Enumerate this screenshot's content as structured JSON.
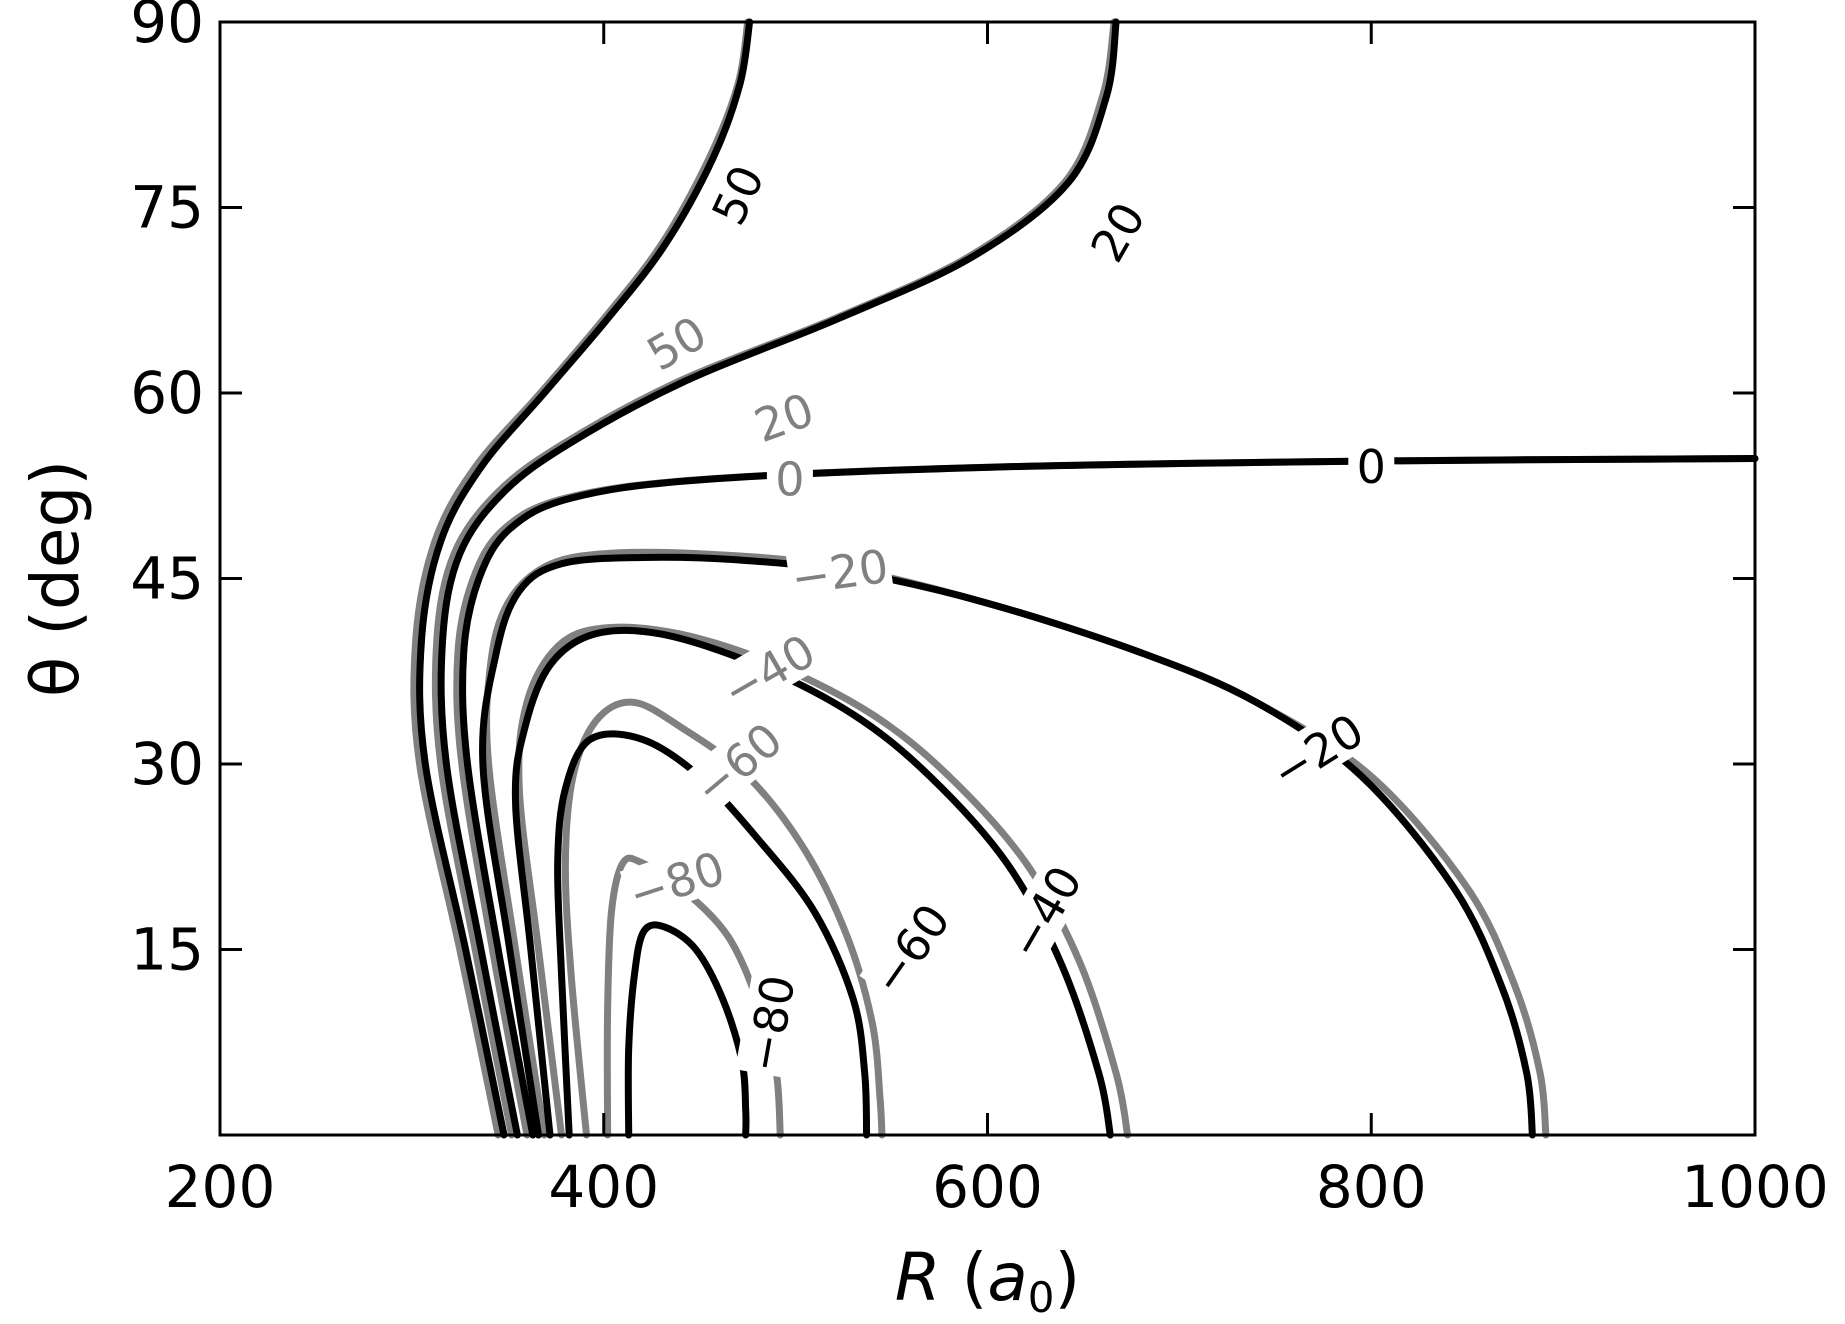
{
  "chart_data": {
    "type": "contour",
    "xlabel": "R",
    "xlabel_unit_base": "a",
    "xlabel_unit_sub": "0",
    "ylabel": "θ (deg)",
    "xlim": [
      200,
      1000
    ],
    "ylim": [
      0,
      90
    ],
    "xticks": [
      200,
      400,
      600,
      800,
      1000
    ],
    "yticks": [
      15,
      30,
      45,
      60,
      75,
      90
    ],
    "colors": {
      "black": "#000000",
      "gray": "#808080"
    },
    "series": [
      {
        "level": 50,
        "color": "#808080",
        "points": [
          [
            345,
            0
          ],
          [
            325,
            15
          ],
          [
            304,
            30
          ],
          [
            302,
            40
          ],
          [
            312,
            48
          ],
          [
            333,
            54
          ],
          [
            367,
            60
          ],
          [
            400,
            66
          ],
          [
            430,
            72
          ],
          [
            455,
            79
          ],
          [
            470,
            85
          ],
          [
            475,
            90
          ]
        ]
      },
      {
        "level": 50,
        "color": "#000000",
        "points": [
          [
            348,
            0
          ],
          [
            328,
            15
          ],
          [
            307,
            30
          ],
          [
            305,
            40
          ],
          [
            315,
            48
          ],
          [
            336,
            54
          ],
          [
            369,
            60
          ],
          [
            402,
            66
          ],
          [
            432,
            72
          ],
          [
            457,
            79
          ],
          [
            471,
            85
          ],
          [
            476,
            90
          ]
        ]
      },
      {
        "level": 20,
        "color": "#808080",
        "points": [
          [
            352,
            0
          ],
          [
            333,
            15
          ],
          [
            315,
            30
          ],
          [
            313,
            40
          ],
          [
            322,
            47
          ],
          [
            345,
            52
          ],
          [
            380,
            56
          ],
          [
            440,
            61
          ],
          [
            520,
            66
          ],
          [
            590,
            71
          ],
          [
            640,
            77
          ],
          [
            660,
            84
          ],
          [
            666,
            90
          ]
        ]
      },
      {
        "level": 20,
        "color": "#000000",
        "points": [
          [
            355,
            0
          ],
          [
            336,
            15
          ],
          [
            318,
            30
          ],
          [
            316,
            40
          ],
          [
            325,
            47
          ],
          [
            348,
            52
          ],
          [
            383,
            56
          ],
          [
            443,
            61
          ],
          [
            522,
            66
          ],
          [
            592,
            71
          ],
          [
            642,
            77
          ],
          [
            662,
            84
          ],
          [
            667,
            90
          ]
        ]
      },
      {
        "level": 0,
        "color": "#808080",
        "points": [
          [
            360,
            0
          ],
          [
            342,
            15
          ],
          [
            326,
            30
          ],
          [
            324,
            39
          ],
          [
            332,
            45
          ],
          [
            348,
            49
          ],
          [
            380,
            51.5
          ],
          [
            450,
            53
          ],
          [
            600,
            54
          ],
          [
            800,
            54.5
          ],
          [
            1000,
            54.7
          ]
        ]
      },
      {
        "level": 0,
        "color": "#000000",
        "points": [
          [
            363,
            0
          ],
          [
            345,
            15
          ],
          [
            329,
            30
          ],
          [
            327,
            39
          ],
          [
            335,
            45
          ],
          [
            351,
            49
          ],
          [
            383,
            51.5
          ],
          [
            452,
            53
          ],
          [
            602,
            54
          ],
          [
            802,
            54.5
          ],
          [
            1000,
            54.7
          ]
        ]
      },
      {
        "level": -20,
        "color": "#808080",
        "points": [
          [
            369,
            0
          ],
          [
            354,
            15
          ],
          [
            340,
            30
          ],
          [
            341,
            38
          ],
          [
            350,
            43
          ],
          [
            370,
            46
          ],
          [
            400,
            47
          ],
          [
            450,
            47
          ],
          [
            520,
            46
          ],
          [
            600,
            43
          ],
          [
            680,
            39
          ],
          [
            740,
            35
          ],
          [
            800,
            29
          ],
          [
            850,
            20
          ],
          [
            875,
            12
          ],
          [
            888,
            5
          ],
          [
            891,
            0
          ]
        ]
      },
      {
        "level": -20,
        "color": "#000000",
        "points": [
          [
            366,
            0
          ],
          [
            351,
            15
          ],
          [
            337,
            30
          ],
          [
            344,
            39
          ],
          [
            356,
            44
          ],
          [
            378,
            46.2
          ],
          [
            420,
            46.7
          ],
          [
            470,
            46.5
          ],
          [
            530,
            45.5
          ],
          [
            600,
            43
          ],
          [
            680,
            39
          ],
          [
            740,
            35
          ],
          [
            795,
            29
          ],
          [
            843,
            20
          ],
          [
            868,
            12
          ],
          [
            881,
            5
          ],
          [
            884,
            0
          ]
        ]
      },
      {
        "level": -40,
        "color": "#808080",
        "points": [
          [
            378,
            0
          ],
          [
            366,
            15
          ],
          [
            356,
            28
          ],
          [
            360,
            35
          ],
          [
            376,
            39.5
          ],
          [
            400,
            41
          ],
          [
            440,
            40.5
          ],
          [
            490,
            38
          ],
          [
            540,
            34
          ],
          [
            580,
            29
          ],
          [
            620,
            22
          ],
          [
            648,
            14
          ],
          [
            667,
            5
          ],
          [
            673,
            0
          ]
        ]
      },
      {
        "level": -40,
        "color": "#000000",
        "points": [
          [
            372,
            0
          ],
          [
            362,
            15
          ],
          [
            354,
            27
          ],
          [
            359,
            33
          ],
          [
            372,
            38
          ],
          [
            395,
            40.5
          ],
          [
            430,
            40.5
          ],
          [
            480,
            38
          ],
          [
            530,
            34
          ],
          [
            570,
            29
          ],
          [
            610,
            22
          ],
          [
            638,
            14
          ],
          [
            658,
            5
          ],
          [
            664,
            0
          ]
        ]
      },
      {
        "level": -60,
        "color": "#808080",
        "points": [
          [
            391,
            0
          ],
          [
            383,
            13
          ],
          [
            380,
            22
          ],
          [
            384,
            29
          ],
          [
            396,
            33.5
          ],
          [
            415,
            35
          ],
          [
            440,
            33
          ],
          [
            475,
            29
          ],
          [
            505,
            23
          ],
          [
            527,
            16
          ],
          [
            540,
            9
          ],
          [
            544,
            3
          ],
          [
            545,
            0
          ]
        ]
      },
      {
        "level": -60,
        "color": "#000000",
        "points": [
          [
            382,
            0
          ],
          [
            378,
            13
          ],
          [
            376,
            22
          ],
          [
            380,
            28
          ],
          [
            393,
            32
          ],
          [
            420,
            32
          ],
          [
            450,
            29
          ],
          [
            480,
            24
          ],
          [
            510,
            18
          ],
          [
            530,
            11
          ],
          [
            536,
            5
          ],
          [
            537,
            0
          ]
        ]
      },
      {
        "level": -80,
        "color": "#808080",
        "points": [
          [
            402,
            0
          ],
          [
            402,
            10
          ],
          [
            404,
            18
          ],
          [
            410,
            22
          ],
          [
            420,
            22
          ],
          [
            440,
            20
          ],
          [
            465,
            16
          ],
          [
            482,
            10
          ],
          [
            490,
            5
          ],
          [
            492,
            0
          ]
        ]
      },
      {
        "level": -80,
        "color": "#000000",
        "points": [
          [
            413,
            0
          ],
          [
            413,
            7
          ],
          [
            416,
            13
          ],
          [
            421,
            16.5
          ],
          [
            432,
            16.8
          ],
          [
            448,
            15
          ],
          [
            462,
            11
          ],
          [
            472,
            6
          ],
          [
            474,
            2
          ],
          [
            474,
            0
          ]
        ]
      }
    ],
    "labels": [
      {
        "text": "50",
        "x": 470,
        "y": 76,
        "rot": -65,
        "color": "#000000"
      },
      {
        "text": "50",
        "x": 438,
        "y": 64,
        "rot": -30,
        "color": "#808080"
      },
      {
        "text": "20",
        "x": 668,
        "y": 73,
        "rot": -60,
        "color": "#000000"
      },
      {
        "text": "20",
        "x": 494,
        "y": 58,
        "rot": -20,
        "color": "#808080"
      },
      {
        "text": "0",
        "x": 497,
        "y": 53,
        "rot": 0,
        "color": "#808080"
      },
      {
        "text": "0",
        "x": 800,
        "y": 54,
        "rot": 0,
        "color": "#000000"
      },
      {
        "text": "−20",
        "x": 523,
        "y": 45.5,
        "rot": -8,
        "color": "#808080"
      },
      {
        "text": "−20",
        "x": 772,
        "y": 31,
        "rot": -32,
        "color": "#000000"
      },
      {
        "text": "−40",
        "x": 486,
        "y": 37.5,
        "rot": -30,
        "color": "#808080"
      },
      {
        "text": "−40",
        "x": 630,
        "y": 18,
        "rot": -60,
        "color": "#000000"
      },
      {
        "text": "−60",
        "x": 470,
        "y": 30,
        "rot": -40,
        "color": "#808080"
      },
      {
        "text": "−60",
        "x": 560,
        "y": 15,
        "rot": -55,
        "color": "#000000"
      },
      {
        "text": "−80",
        "x": 438,
        "y": 20.5,
        "rot": -18,
        "color": "#808080"
      },
      {
        "text": "−80",
        "x": 487,
        "y": 9,
        "rot": -80,
        "color": "#000000"
      }
    ]
  }
}
